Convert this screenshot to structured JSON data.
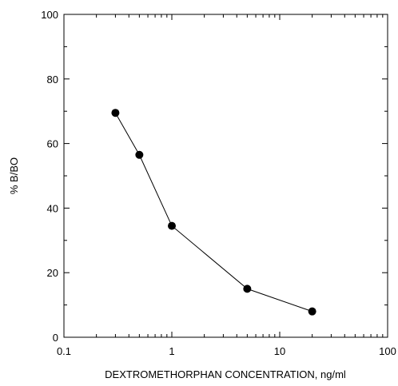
{
  "chart_data": {
    "type": "line",
    "title": "",
    "xlabel": "DEXTROMETHORPHAN CONCENTRATION, ng/ml",
    "ylabel": "% B/BO",
    "x_scale": "log",
    "xlim": [
      0.1,
      100
    ],
    "ylim": [
      0,
      100
    ],
    "x_ticks": [
      {
        "value": 0.1,
        "label": "0.1"
      },
      {
        "value": 1,
        "label": "1"
      },
      {
        "value": 10,
        "label": "10"
      },
      {
        "value": 100,
        "label": "100"
      }
    ],
    "y_ticks": [
      {
        "value": 0,
        "label": "0"
      },
      {
        "value": 20,
        "label": "20"
      },
      {
        "value": 40,
        "label": "40"
      },
      {
        "value": 60,
        "label": "60"
      },
      {
        "value": 80,
        "label": "80"
      },
      {
        "value": 100,
        "label": "100"
      }
    ],
    "grid": false,
    "legend": "none",
    "series": [
      {
        "x": [
          0.3,
          0.5,
          1,
          5,
          20
        ],
        "y": [
          69.5,
          56.5,
          34.5,
          15,
          8
        ],
        "color": "#000000",
        "marker": "filled-circle"
      }
    ]
  }
}
